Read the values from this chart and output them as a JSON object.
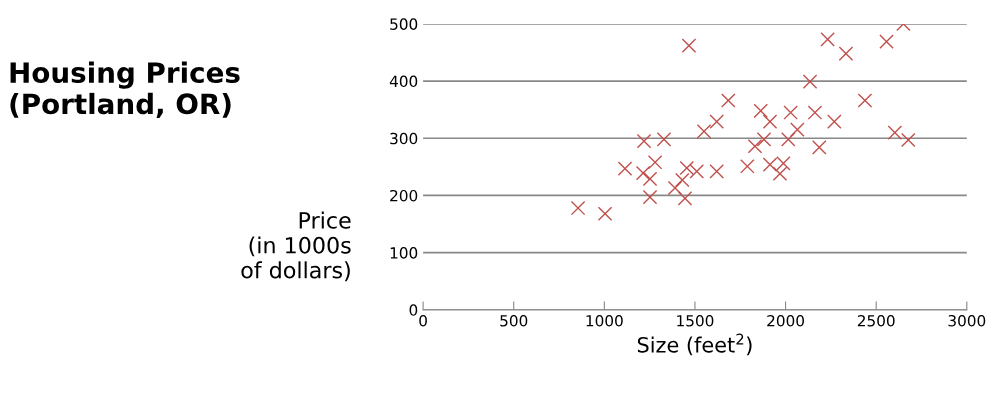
{
  "chart_data": {
    "type": "scatter",
    "title": "Housing Prices\n(Portland, OR)",
    "xlabel": "Size (feet$^{2}$)",
    "ylabel": "Price\n(in 1000s\nof dollars)",
    "x": [
      855,
      1004,
      1114,
      1219,
      1329,
      1214,
      1252,
      1280,
      1252,
      1390,
      1430,
      1455,
      1445,
      1510,
      1620,
      1789,
      1550,
      1620,
      1684,
      1467,
      2650,
      2557,
      2232,
      2333,
      2135,
      2438,
      1863,
      1914,
      2028,
      2162,
      2269,
      2065,
      1881,
      2015,
      1831,
      2186,
      2603,
      2677,
      1914,
      1988,
      1969
    ],
    "values": [
      178,
      168,
      247,
      295,
      298,
      239,
      229,
      258,
      197,
      213,
      227,
      248,
      195,
      242,
      242,
      251,
      312,
      329,
      366,
      462,
      500,
      469,
      473,
      448,
      399,
      366,
      348,
      329,
      345,
      345,
      329,
      315,
      298,
      298,
      286,
      284,
      310,
      297,
      254,
      256,
      238
    ],
    "color": "#c0504d",
    "marker": "cross",
    "grid": "y",
    "xlim": [
      0,
      3000
    ],
    "xticks": [
      0,
      500,
      1000,
      1500,
      2000,
      2500,
      3000
    ],
    "ylim": [
      0,
      500
    ],
    "yticks": [
      0,
      100,
      200,
      300,
      400,
      500
    ]
  }
}
